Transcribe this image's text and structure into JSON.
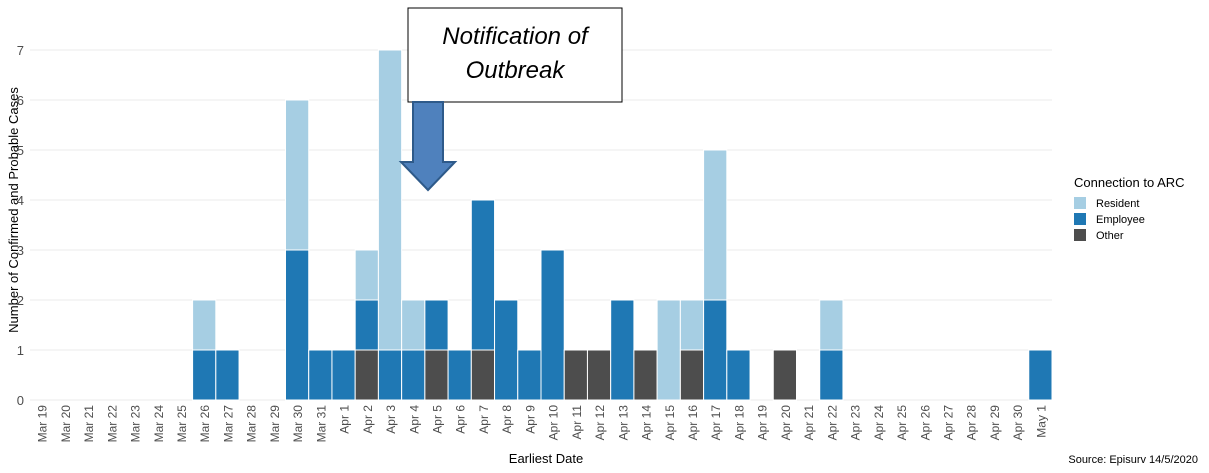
{
  "chart_data": {
    "type": "bar",
    "ylabel": "Number of Confirmed and Probable Cases",
    "xlabel": "Earliest Date",
    "source": "Source: Episurv 14/5/2020",
    "annotation": "Notification of Outbreak",
    "legend_title": "Connection to ARC",
    "categories": [
      "Mar 19",
      "Mar 20",
      "Mar 21",
      "Mar 22",
      "Mar 23",
      "Mar 24",
      "Mar 25",
      "Mar 26",
      "Mar 27",
      "Mar 28",
      "Mar 29",
      "Mar 30",
      "Mar 31",
      "Apr 1",
      "Apr 2",
      "Apr 3",
      "Apr 4",
      "Apr 5",
      "Apr 6",
      "Apr 7",
      "Apr 8",
      "Apr 9",
      "Apr 10",
      "Apr 11",
      "Apr 12",
      "Apr 13",
      "Apr 14",
      "Apr 15",
      "Apr 16",
      "Apr 17",
      "Apr 18",
      "Apr 19",
      "Apr 20",
      "Apr 21",
      "Apr 22",
      "Apr 23",
      "Apr 24",
      "Apr 25",
      "Apr 26",
      "Apr 27",
      "Apr 28",
      "Apr 29",
      "Apr 30",
      "May 1"
    ],
    "series": [
      {
        "name": "Resident",
        "color": "#a6cee3",
        "values": [
          0,
          0,
          0,
          0,
          0,
          0,
          0,
          1,
          0,
          0,
          0,
          3,
          0,
          0,
          1,
          6,
          1,
          0,
          0,
          0,
          0,
          0,
          0,
          0,
          0,
          0,
          0,
          2,
          1,
          3,
          0,
          0,
          0,
          0,
          1,
          0,
          0,
          0,
          0,
          0,
          0,
          0,
          0,
          0
        ]
      },
      {
        "name": "Employee",
        "color": "#1f78b4",
        "values": [
          0,
          0,
          0,
          0,
          0,
          0,
          0,
          1,
          1,
          0,
          0,
          3,
          1,
          1,
          1,
          1,
          1,
          1,
          1,
          3,
          2,
          1,
          3,
          0,
          0,
          2,
          0,
          0,
          0,
          2,
          1,
          0,
          0,
          0,
          1,
          0,
          0,
          0,
          0,
          0,
          0,
          0,
          0,
          1
        ]
      },
      {
        "name": "Other",
        "color": "#4d4d4d",
        "values": [
          0,
          0,
          0,
          0,
          0,
          0,
          0,
          0,
          0,
          0,
          0,
          0,
          0,
          0,
          1,
          0,
          0,
          1,
          0,
          1,
          0,
          0,
          0,
          1,
          1,
          0,
          1,
          0,
          1,
          0,
          0,
          0,
          1,
          0,
          0,
          0,
          0,
          0,
          0,
          0,
          0,
          0,
          0,
          0
        ]
      }
    ],
    "ylim": [
      0,
      7.5
    ],
    "yticks": [
      0,
      1,
      2,
      3,
      4,
      5,
      6,
      7
    ],
    "grid": true,
    "stacked": true,
    "legend": "right"
  }
}
